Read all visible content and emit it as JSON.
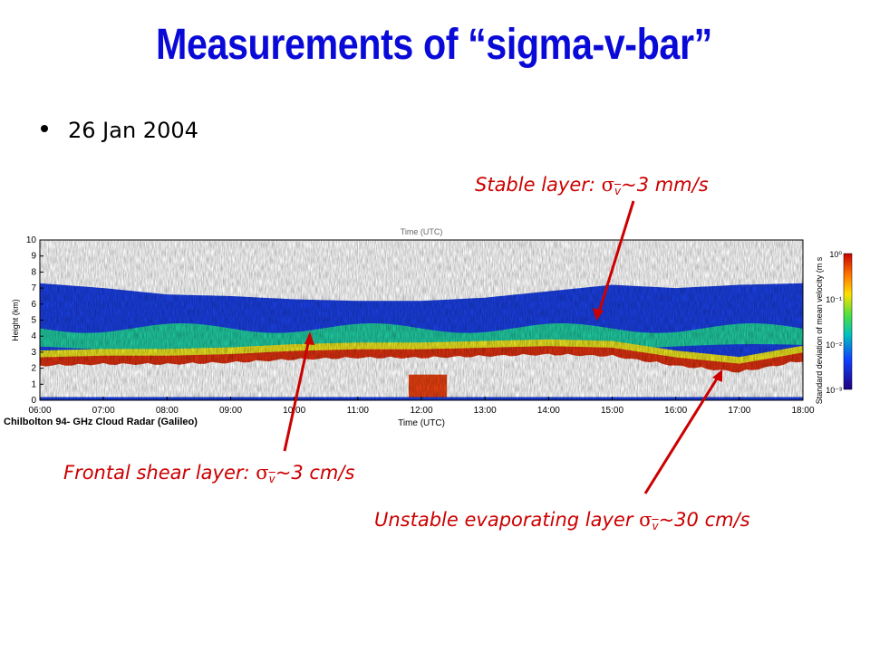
{
  "slide": {
    "title": "Measurements of “sigma-v-bar”",
    "bullet": "26 Jan 2004"
  },
  "annotations": {
    "stable": {
      "prefix": "Stable layer: ",
      "symbol": "σ",
      "sub": "v",
      "suffix": "~3 mm/s"
    },
    "frontal": {
      "prefix": "Frontal shear layer: ",
      "symbol": "σ",
      "sub": "v",
      "suffix": "~3 cm/s"
    },
    "unstable": {
      "prefix": "Unstable evaporating layer ",
      "symbol": "σ",
      "sub": "v",
      "suffix": "~30 cm/s"
    }
  },
  "instrument_label": "Chilbolton 94- GHz Cloud Radar (Galileo)",
  "chart_data": {
    "type": "heatmap",
    "title": "Time (UTC)",
    "xlabel": "Time (UTC)",
    "ylabel": "Height (km)",
    "x_ticks": [
      "06:00",
      "07:00",
      "08:00",
      "09:00",
      "10:00",
      "11:00",
      "12:00",
      "13:00",
      "14:00",
      "15:00",
      "16:00",
      "17:00",
      "18:00"
    ],
    "y_ticks": [
      "0",
      "1",
      "2",
      "3",
      "4",
      "5",
      "6",
      "7",
      "8",
      "9",
      "10"
    ],
    "ylim": [
      0,
      10
    ],
    "xlim_hours": [
      6,
      18
    ],
    "colorbar_label": "Standard deviation of mean velocity (m s",
    "colorbar_ticks": [
      "10⁰",
      "10⁻¹",
      "10⁻²",
      "10⁻³"
    ],
    "colorbar_range": [
      0.001,
      1
    ],
    "colorbar_scale": "log",
    "layers": [
      {
        "name": "main cloud",
        "value": 0.003,
        "top_km": [
          7.3,
          7.0,
          6.6,
          6.5,
          6.3,
          6.2,
          6.2,
          6.4,
          6.8,
          7.2,
          7.0,
          7.2,
          7.3
        ],
        "base_km": [
          2.5,
          2.6,
          2.6,
          2.7,
          2.9,
          3.0,
          3.0,
          3.1,
          3.2,
          3.1,
          2.5,
          2.1,
          2.8
        ]
      },
      {
        "name": "frontal shear layer",
        "value": 0.03,
        "top_km": 4.5,
        "base_km": 3.3
      },
      {
        "name": "evaporating layer",
        "value": 0.3,
        "top_km": 3.1,
        "base_km": 2.2
      },
      {
        "name": "precipitation patch",
        "value": 0.5,
        "x_hours": [
          11.8,
          12.4
        ],
        "top_km": 1.6,
        "base_km": 0.0
      }
    ],
    "colors": {
      "low": "#1010c8",
      "mid": "#00c0a0",
      "high": "#e0e020",
      "max": "#d02000"
    }
  },
  "colors": {
    "title": "#0a0ad8",
    "annotation": "#cc0000"
  }
}
